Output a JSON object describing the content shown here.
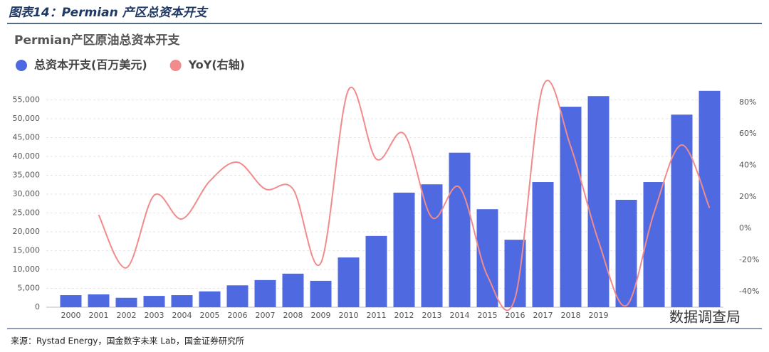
{
  "header": {
    "title": "图表14：Permian 产区总资本开支"
  },
  "chart_data": {
    "type": "bar_line",
    "title": "Permian产区原油总资本开支",
    "categories": [
      "2000",
      "2001",
      "2002",
      "2003",
      "2004",
      "2005",
      "2006",
      "2007",
      "2008",
      "2009",
      "2010",
      "2011",
      "2012",
      "2013",
      "2014",
      "2015",
      "2016",
      "2017",
      "2018",
      "2019",
      null,
      null,
      null,
      null
    ],
    "series": [
      {
        "name": "总资本开支(百万美元)",
        "color": "#4f6ae0",
        "values": [
          3200,
          3400,
          2500,
          3000,
          3200,
          4200,
          5800,
          7200,
          8900,
          7000,
          13200,
          18900,
          30400,
          32600,
          41000,
          26000,
          17900,
          33200,
          53200,
          56000,
          28500,
          33200,
          51100,
          57400
        ]
      },
      {
        "name": "YoY(右轴)",
        "color": "#f28b8b",
        "axis": "y2",
        "values": [
          null,
          8.6,
          -25,
          21,
          6,
          30,
          42,
          25,
          25,
          -22,
          88,
          44,
          60,
          7,
          26,
          -30,
          -44,
          90,
          52,
          -8,
          -49,
          10,
          53,
          13
        ]
      }
    ],
    "ylim": [
      0,
      60000
    ],
    "yticks": [
      0,
      {
        "value": 5000,
        "label": "5,000"
      },
      {
        "value": 10000,
        "label": "10,000"
      },
      {
        "value": 15000,
        "label": "15,000"
      },
      {
        "value": 20000,
        "label": "20,000"
      },
      {
        "value": 25000,
        "label": "25,000"
      },
      {
        "value": 30000,
        "label": "30,000"
      },
      {
        "value": 35000,
        "label": "35,000"
      },
      {
        "value": 40000,
        "label": "40,000"
      },
      {
        "value": 45000,
        "label": "45,000"
      },
      {
        "value": 50000,
        "label": "50,000"
      },
      {
        "value": 55000,
        "label": "55,000"
      }
    ],
    "y2lim": [
      -50,
      93.5
    ],
    "y2ticks": [
      {
        "value": -40,
        "label": "-40%"
      },
      {
        "value": -20,
        "label": "-20%"
      },
      {
        "value": 0,
        "label": "0%"
      },
      {
        "value": 20,
        "label": "20%"
      },
      {
        "value": 40,
        "label": "40%"
      },
      {
        "value": 60,
        "label": "60%"
      },
      {
        "value": 80,
        "label": "80%"
      }
    ],
    "grid": true
  },
  "watermark": "数据调查局",
  "footer": {
    "source": "来源：Rystad Energy，国金数字未来 Lab，国金证券研究所"
  }
}
